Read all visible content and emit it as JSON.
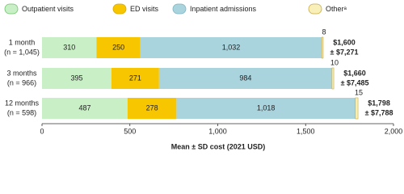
{
  "chart_data": {
    "type": "stacked_barh",
    "categories": [
      "1 month",
      "3 months",
      "12 months"
    ],
    "category_sublabels": [
      "(n = 1,045)",
      "(n = 966)",
      "(n = 598)"
    ],
    "series": [
      {
        "name": "Outpatient visits",
        "color": "#c8efc5",
        "values": [
          310,
          395,
          487
        ]
      },
      {
        "name": "ED visits",
        "color": "#f7c600",
        "values": [
          250,
          271,
          278
        ]
      },
      {
        "name": "Inpatient admissions",
        "color": "#a9d4de",
        "values": [
          1032,
          984,
          1018
        ],
        "value_labels": [
          "1,032",
          "984",
          "1,018"
        ]
      },
      {
        "name": "Otherᵃ",
        "color": "#f8f0b8",
        "values": [
          8,
          10,
          15
        ]
      }
    ],
    "totals": [
      {
        "mean": "$1,600",
        "sd": "± $7,271"
      },
      {
        "mean": "$1,660",
        "sd": "± $7,485"
      },
      {
        "mean": "$1,798",
        "sd": "± $7,788"
      }
    ],
    "xlabel": "Mean ± SD cost (2021 USD)",
    "xlim": [
      0,
      2000
    ],
    "xticks": [
      0,
      500,
      {
        "value": 1000,
        "label": "1,000"
      },
      {
        "value": 1500,
        "label": "1,500"
      },
      {
        "value": 2000,
        "label": "2,000"
      }
    ],
    "grid": false
  }
}
